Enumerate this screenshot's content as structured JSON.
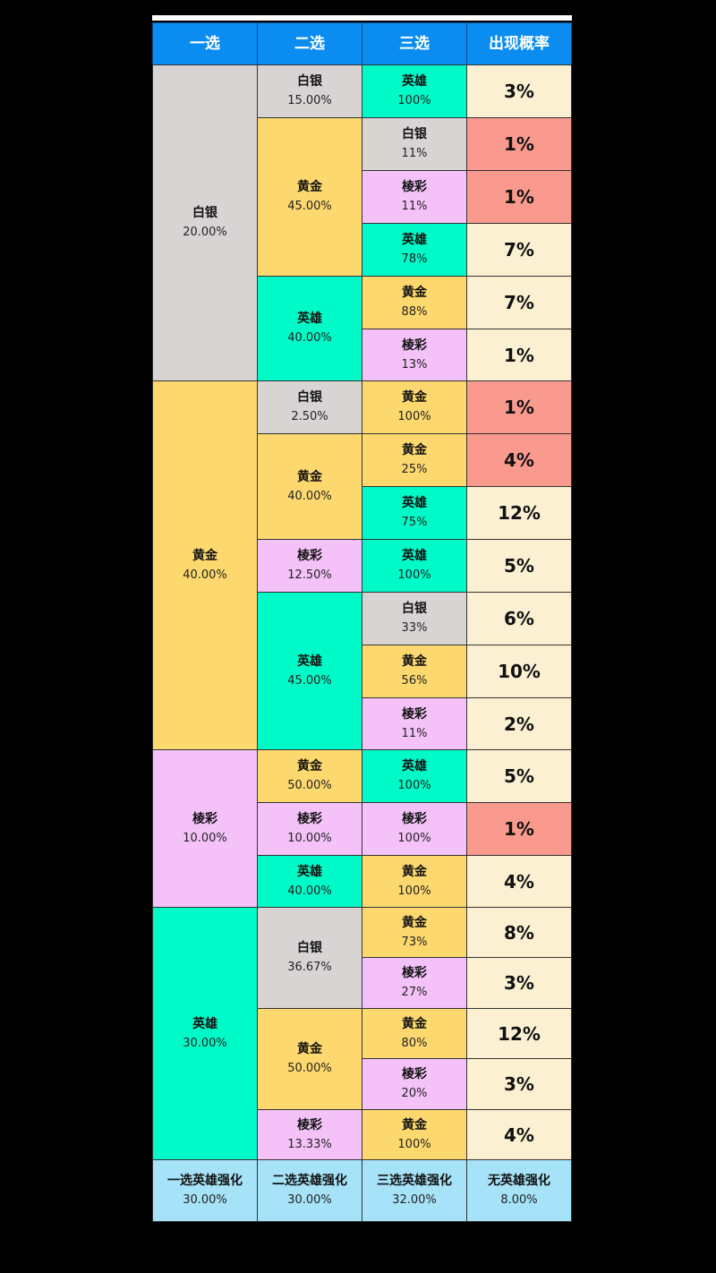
{
  "headers": [
    "一选",
    "二选",
    "三选",
    "出现概率"
  ],
  "colors": {
    "header": "#0A8CF0",
    "silver": "#D8D4D4",
    "gold": "#FDD86E",
    "prism": "#F4C2F9",
    "hero": "#00FAC8",
    "cream": "#FBF0D2",
    "red": "#FA9A8E",
    "footer": "#A6E2F8"
  },
  "first": [
    {
      "name": "白银",
      "pct": "20.00%"
    },
    {
      "name": "黄金",
      "pct": "40.00%"
    },
    {
      "name": "棱彩",
      "pct": "10.00%"
    },
    {
      "name": "英雄",
      "pct": "30.00%"
    }
  ],
  "second": [
    {
      "name": "白银",
      "pct": "15.00%"
    },
    {
      "name": "黄金",
      "pct": "45.00%"
    },
    {
      "name": "英雄",
      "pct": "40.00%"
    },
    {
      "name": "白银",
      "pct": "2.50%"
    },
    {
      "name": "黄金",
      "pct": "40.00%"
    },
    {
      "name": "棱彩",
      "pct": "12.50%"
    },
    {
      "name": "英雄",
      "pct": "45.00%"
    },
    {
      "name": "黄金",
      "pct": "50.00%"
    },
    {
      "name": "棱彩",
      "pct": "10.00%"
    },
    {
      "name": "英雄",
      "pct": "40.00%"
    },
    {
      "name": "白银",
      "pct": "36.67%"
    },
    {
      "name": "黄金",
      "pct": "50.00%"
    },
    {
      "name": "棱彩",
      "pct": "13.33%"
    }
  ],
  "third": [
    {
      "name": "英雄",
      "pct": "100%"
    },
    {
      "name": "白银",
      "pct": "11%"
    },
    {
      "name": "棱彩",
      "pct": "11%"
    },
    {
      "name": "英雄",
      "pct": "78%"
    },
    {
      "name": "黄金",
      "pct": "88%"
    },
    {
      "name": "棱彩",
      "pct": "13%"
    },
    {
      "name": "黄金",
      "pct": "100%"
    },
    {
      "name": "黄金",
      "pct": "25%"
    },
    {
      "name": "英雄",
      "pct": "75%"
    },
    {
      "name": "英雄",
      "pct": "100%"
    },
    {
      "name": "白银",
      "pct": "33%"
    },
    {
      "name": "黄金",
      "pct": "56%"
    },
    {
      "name": "棱彩",
      "pct": "11%"
    },
    {
      "name": "英雄",
      "pct": "100%"
    },
    {
      "name": "棱彩",
      "pct": "100%"
    },
    {
      "name": "黄金",
      "pct": "100%"
    },
    {
      "name": "黄金",
      "pct": "73%"
    },
    {
      "name": "棱彩",
      "pct": "27%"
    },
    {
      "name": "黄金",
      "pct": "80%"
    },
    {
      "name": "棱彩",
      "pct": "20%"
    },
    {
      "name": "黄金",
      "pct": "100%"
    }
  ],
  "probability": [
    "3%",
    "1%",
    "1%",
    "7%",
    "7%",
    "1%",
    "1%",
    "4%",
    "12%",
    "5%",
    "6%",
    "10%",
    "2%",
    "5%",
    "1%",
    "4%",
    "8%",
    "3%",
    "12%",
    "3%",
    "4%"
  ],
  "footer": [
    {
      "name": "一选英雄强化",
      "pct": "30.00%"
    },
    {
      "name": "二选英雄强化",
      "pct": "30.00%"
    },
    {
      "name": "三选英雄强化",
      "pct": "32.00%"
    },
    {
      "name": "无英雄强化",
      "pct": "8.00%"
    }
  ]
}
